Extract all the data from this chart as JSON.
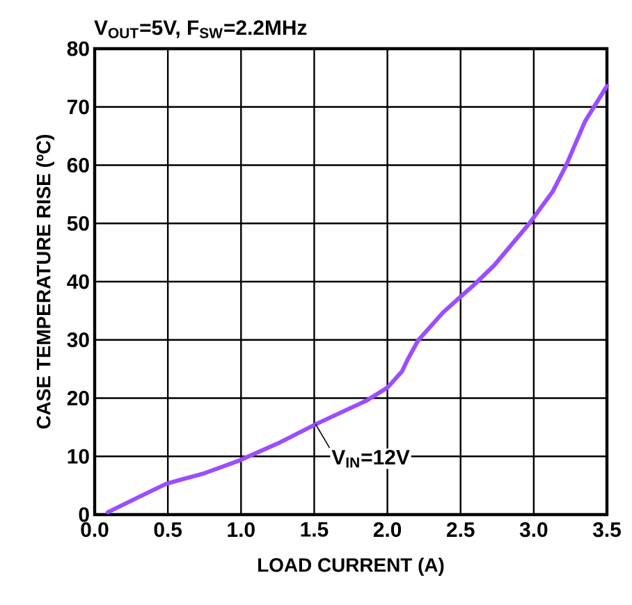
{
  "chart_data": {
    "type": "line",
    "title": "V$_{OUT}$=5V, F$_{SW}$=2.2MHz",
    "xlabel": "LOAD CURRENT (A)",
    "ylabel": "CASE TEMPERATURE RISE (ºC)",
    "x": [
      0.09,
      0.3,
      0.49,
      0.75,
      0.99,
      1.25,
      1.51,
      1.86,
      2.0,
      2.05,
      2.1,
      2.14,
      2.21,
      2.38,
      2.49,
      2.59,
      2.73,
      2.97,
      3.13,
      3.22,
      3.35,
      3.5
    ],
    "series": [
      {
        "color": "#9b4dff",
        "values": [
          0.4,
          3.0,
          5.3,
          7.1,
          9.3,
          12.2,
          15.5,
          19.6,
          21.8,
          23.2,
          24.6,
          26.7,
          29.9,
          34.7,
          37.2,
          39.4,
          42.8,
          50,
          55.5,
          59.9,
          67.5,
          73.6
        ]
      }
    ],
    "annotations": [
      {
        "text": "V$_{IN}$=12V",
        "x": 1.51,
        "y": 15.5
      }
    ],
    "xlim": [
      0,
      3.5
    ],
    "ylim": [
      0,
      80
    ],
    "xticks": [
      {
        "value": 0,
        "label": "0.0"
      },
      0.5,
      {
        "value": 1,
        "label": "1.0"
      },
      1.5,
      {
        "value": 2,
        "label": "2.0"
      },
      2.5,
      {
        "value": 3,
        "label": "3.0"
      },
      3.5
    ],
    "yticks": [
      0,
      10,
      20,
      30,
      40,
      50,
      60,
      70,
      80
    ],
    "grid": true,
    "marker": "none",
    "line_style": "solid"
  }
}
